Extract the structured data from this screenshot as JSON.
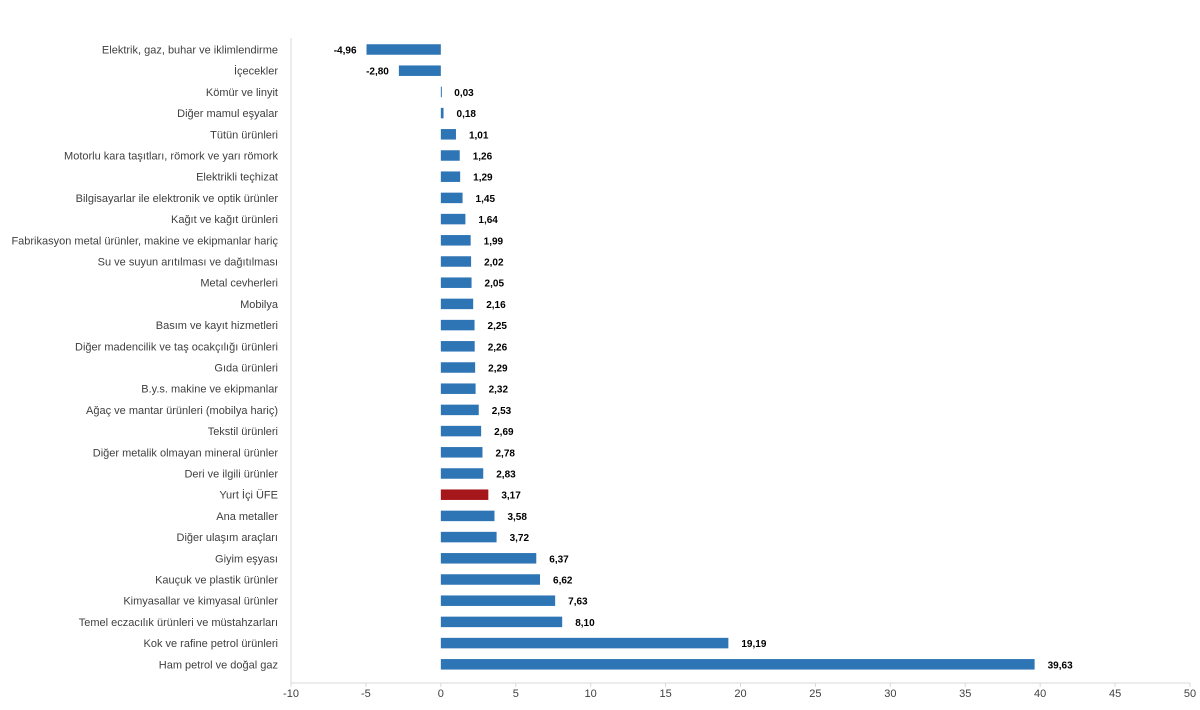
{
  "chart_data": {
    "type": "bar",
    "orientation": "horizontal",
    "title": "",
    "xlabel": "",
    "ylabel": "",
    "xlim": [
      -10,
      50
    ],
    "xticks": [
      "-10",
      "-5",
      "0",
      "5",
      "10",
      "15",
      "20",
      "25",
      "30",
      "35",
      "40",
      "45",
      "50"
    ],
    "grid": false,
    "legend": "none",
    "colors": {
      "bar": "#2e75b6",
      "highlight": "#a6171c",
      "axis": "#d9d9d9",
      "label": "#404040",
      "value": "#000000"
    },
    "highlight_category": "Yurt İçi ÜFE",
    "categories": [
      "Elektrik, gaz, buhar ve iklimlendirme",
      "İçecekler",
      "Kömür ve linyit",
      "Diğer mamul eşyalar",
      "Tütün ürünleri",
      "Motorlu kara taşıtları, römork ve yarı römork",
      "Elektrikli teçhizat",
      "Bilgisayarlar ile elektronik ve optik ürünler",
      "Kağıt ve kağıt ürünleri",
      "Fabrikasyon metal ürünler, makine ve ekipmanlar hariç",
      "Su ve suyun arıtılması ve dağıtılması",
      "Metal cevherleri",
      "Mobilya",
      "Basım ve kayıt hizmetleri",
      "Diğer madencilik ve taş ocakçılığı ürünleri",
      "Gıda ürünleri",
      "B.y.s. makine ve ekipmanlar",
      "Ağaç ve mantar ürünleri (mobilya hariç)",
      "Tekstil ürünleri",
      "Diğer metalik olmayan mineral ürünler",
      "Deri ve ilgili ürünler",
      "Yurt İçi ÜFE",
      "Ana metaller",
      "Diğer ulaşım araçları",
      "Giyim eşyası",
      "Kauçuk ve plastik ürünler",
      "Kimyasallar ve kimyasal ürünler",
      "Temel eczacılık ürünleri ve müstahzarları",
      "Kok ve rafine petrol ürünleri",
      "Ham petrol ve doğal gaz"
    ],
    "values": [
      -4.96,
      -2.8,
      0.03,
      0.18,
      1.01,
      1.26,
      1.29,
      1.45,
      1.64,
      1.99,
      2.02,
      2.05,
      2.16,
      2.25,
      2.26,
      2.29,
      2.32,
      2.53,
      2.69,
      2.78,
      2.83,
      3.17,
      3.58,
      3.72,
      6.37,
      6.62,
      7.63,
      8.1,
      19.19,
      39.63
    ],
    "value_labels": [
      "-4,96",
      "-2,80",
      "0,03",
      "0,18",
      "1,01",
      "1,26",
      "1,29",
      "1,45",
      "1,64",
      "1,99",
      "2,02",
      "2,05",
      "2,16",
      "2,25",
      "2,26",
      "2,29",
      "2,32",
      "2,53",
      "2,69",
      "2,78",
      "2,83",
      "3,17",
      "3,58",
      "3,72",
      "6,37",
      "6,62",
      "7,63",
      "8,10",
      "19,19",
      "39,63"
    ]
  }
}
